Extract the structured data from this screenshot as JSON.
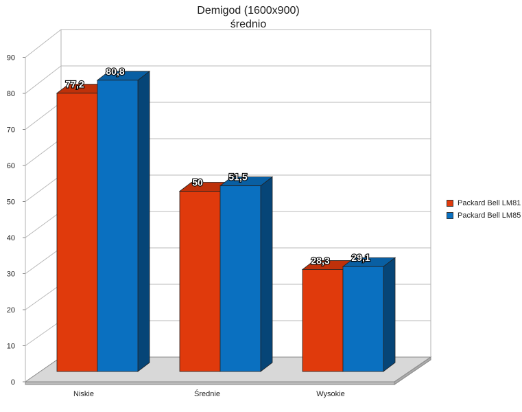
{
  "chart_data": {
    "type": "bar",
    "title": "Demigod (1600x900)",
    "subtitle": "średnio",
    "categories": [
      "Niskie",
      "Średnie",
      "Wysokie"
    ],
    "series": [
      {
        "name": "Packard Bell LM81",
        "color": "#e03a0c",
        "values": [
          77.2,
          50,
          28.3
        ],
        "labels": [
          "77,2",
          "50",
          "28,3"
        ]
      },
      {
        "name": "Packard Bell LM85",
        "color": "#0a70c0",
        "values": [
          80.8,
          51.5,
          29.1
        ],
        "labels": [
          "80,8",
          "51,5",
          "29,1"
        ]
      }
    ],
    "yticks": [
      0,
      10,
      20,
      30,
      40,
      50,
      60,
      70,
      80,
      90
    ],
    "ylim": [
      0,
      90
    ],
    "grid": true,
    "legend_position": "right",
    "three_d": true
  }
}
